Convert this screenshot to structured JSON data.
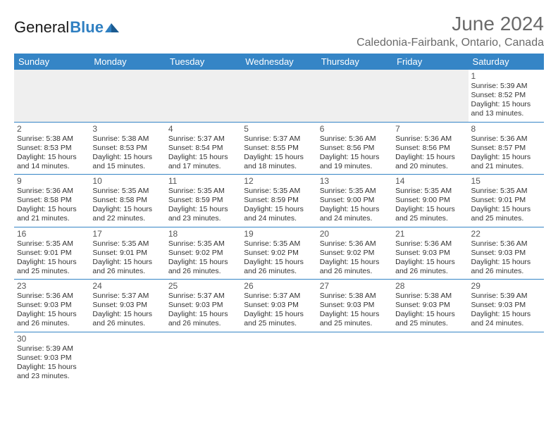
{
  "brand": {
    "name_part1": "General",
    "name_part2": "Blue"
  },
  "title": "June 2024",
  "location": "Caledonia-Fairbank, Ontario, Canada",
  "colors": {
    "header_bg": "#3585c6",
    "header_text": "#ffffff",
    "cell_border": "#3585c6",
    "empty_bg": "#efefef",
    "text": "#333333",
    "title_text": "#6a6a6a",
    "brand_blue": "#2f7fc1"
  },
  "typography": {
    "title_fontsize_pt": 21,
    "location_fontsize_pt": 12,
    "weekday_fontsize_pt": 10,
    "daynum_fontsize_pt": 9,
    "info_fontsize_pt": 8
  },
  "weekdays": [
    "Sunday",
    "Monday",
    "Tuesday",
    "Wednesday",
    "Thursday",
    "Friday",
    "Saturday"
  ],
  "weeks": [
    [
      null,
      null,
      null,
      null,
      null,
      null,
      {
        "n": "1",
        "sunrise": "5:39 AM",
        "sunset": "8:52 PM",
        "dayH": "15",
        "dayM": "13"
      }
    ],
    [
      {
        "n": "2",
        "sunrise": "5:38 AM",
        "sunset": "8:53 PM",
        "dayH": "15",
        "dayM": "14"
      },
      {
        "n": "3",
        "sunrise": "5:38 AM",
        "sunset": "8:53 PM",
        "dayH": "15",
        "dayM": "15"
      },
      {
        "n": "4",
        "sunrise": "5:37 AM",
        "sunset": "8:54 PM",
        "dayH": "15",
        "dayM": "17"
      },
      {
        "n": "5",
        "sunrise": "5:37 AM",
        "sunset": "8:55 PM",
        "dayH": "15",
        "dayM": "18"
      },
      {
        "n": "6",
        "sunrise": "5:36 AM",
        "sunset": "8:56 PM",
        "dayH": "15",
        "dayM": "19"
      },
      {
        "n": "7",
        "sunrise": "5:36 AM",
        "sunset": "8:56 PM",
        "dayH": "15",
        "dayM": "20"
      },
      {
        "n": "8",
        "sunrise": "5:36 AM",
        "sunset": "8:57 PM",
        "dayH": "15",
        "dayM": "21"
      }
    ],
    [
      {
        "n": "9",
        "sunrise": "5:36 AM",
        "sunset": "8:58 PM",
        "dayH": "15",
        "dayM": "21"
      },
      {
        "n": "10",
        "sunrise": "5:35 AM",
        "sunset": "8:58 PM",
        "dayH": "15",
        "dayM": "22"
      },
      {
        "n": "11",
        "sunrise": "5:35 AM",
        "sunset": "8:59 PM",
        "dayH": "15",
        "dayM": "23"
      },
      {
        "n": "12",
        "sunrise": "5:35 AM",
        "sunset": "8:59 PM",
        "dayH": "15",
        "dayM": "24"
      },
      {
        "n": "13",
        "sunrise": "5:35 AM",
        "sunset": "9:00 PM",
        "dayH": "15",
        "dayM": "24"
      },
      {
        "n": "14",
        "sunrise": "5:35 AM",
        "sunset": "9:00 PM",
        "dayH": "15",
        "dayM": "25"
      },
      {
        "n": "15",
        "sunrise": "5:35 AM",
        "sunset": "9:01 PM",
        "dayH": "15",
        "dayM": "25"
      }
    ],
    [
      {
        "n": "16",
        "sunrise": "5:35 AM",
        "sunset": "9:01 PM",
        "dayH": "15",
        "dayM": "25"
      },
      {
        "n": "17",
        "sunrise": "5:35 AM",
        "sunset": "9:01 PM",
        "dayH": "15",
        "dayM": "26"
      },
      {
        "n": "18",
        "sunrise": "5:35 AM",
        "sunset": "9:02 PM",
        "dayH": "15",
        "dayM": "26"
      },
      {
        "n": "19",
        "sunrise": "5:35 AM",
        "sunset": "9:02 PM",
        "dayH": "15",
        "dayM": "26"
      },
      {
        "n": "20",
        "sunrise": "5:36 AM",
        "sunset": "9:02 PM",
        "dayH": "15",
        "dayM": "26"
      },
      {
        "n": "21",
        "sunrise": "5:36 AM",
        "sunset": "9:03 PM",
        "dayH": "15",
        "dayM": "26"
      },
      {
        "n": "22",
        "sunrise": "5:36 AM",
        "sunset": "9:03 PM",
        "dayH": "15",
        "dayM": "26"
      }
    ],
    [
      {
        "n": "23",
        "sunrise": "5:36 AM",
        "sunset": "9:03 PM",
        "dayH": "15",
        "dayM": "26"
      },
      {
        "n": "24",
        "sunrise": "5:37 AM",
        "sunset": "9:03 PM",
        "dayH": "15",
        "dayM": "26"
      },
      {
        "n": "25",
        "sunrise": "5:37 AM",
        "sunset": "9:03 PM",
        "dayH": "15",
        "dayM": "26"
      },
      {
        "n": "26",
        "sunrise": "5:37 AM",
        "sunset": "9:03 PM",
        "dayH": "15",
        "dayM": "25"
      },
      {
        "n": "27",
        "sunrise": "5:38 AM",
        "sunset": "9:03 PM",
        "dayH": "15",
        "dayM": "25"
      },
      {
        "n": "28",
        "sunrise": "5:38 AM",
        "sunset": "9:03 PM",
        "dayH": "15",
        "dayM": "25"
      },
      {
        "n": "29",
        "sunrise": "5:39 AM",
        "sunset": "9:03 PM",
        "dayH": "15",
        "dayM": "24"
      }
    ],
    [
      {
        "n": "30",
        "sunrise": "5:39 AM",
        "sunset": "9:03 PM",
        "dayH": "15",
        "dayM": "23"
      },
      null,
      null,
      null,
      null,
      null,
      null
    ]
  ],
  "labels": {
    "sunrise_prefix": "Sunrise: ",
    "sunset_prefix": "Sunset: ",
    "daylight_prefix": "Daylight: ",
    "hours_word": " hours",
    "and_word": "and ",
    "minutes_word": " minutes."
  }
}
